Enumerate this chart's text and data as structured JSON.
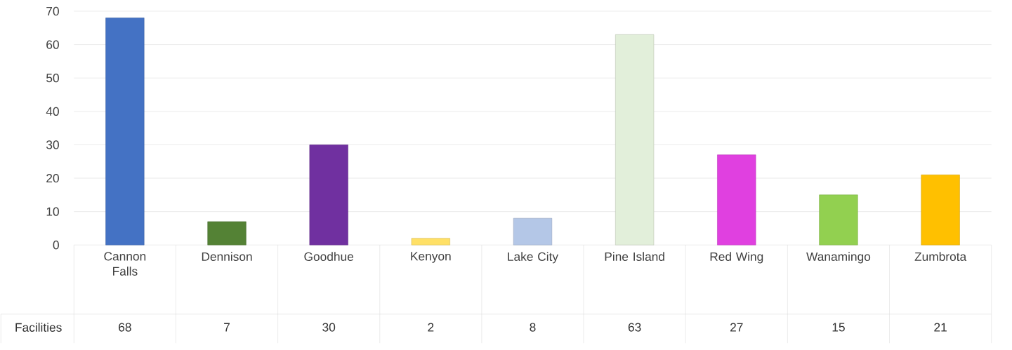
{
  "chart_data": {
    "type": "bar",
    "categories": [
      "Cannon Falls",
      "Dennison",
      "Goodhue",
      "Kenyon",
      "Lake City",
      "Pine Island",
      "Red Wing",
      "Wanamingo",
      "Zumbrota"
    ],
    "series": [
      {
        "name": "Facilities",
        "values": [
          68,
          7,
          30,
          2,
          8,
          63,
          27,
          15,
          21
        ],
        "colors": [
          "#4472c4",
          "#548235",
          "#7030a0",
          "#ffe066",
          "#b4c7e7",
          "#e2efda",
          "#e040e0",
          "#92d050",
          "#ffc000"
        ]
      }
    ],
    "ylim": [
      0,
      70
    ],
    "yticks": [
      0,
      10,
      20,
      30,
      40,
      50,
      60,
      70
    ],
    "grid": "y",
    "data_labels": true
  }
}
